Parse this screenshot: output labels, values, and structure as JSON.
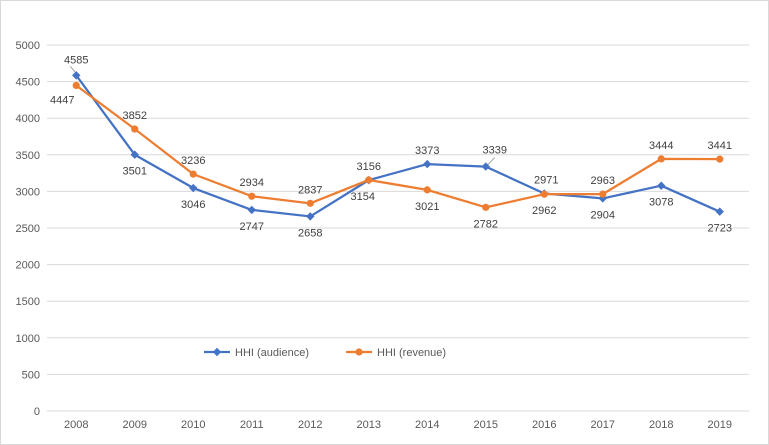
{
  "chart_data": {
    "type": "line",
    "title": "",
    "xlabel": "",
    "ylabel": "",
    "categories": [
      "2008",
      "2009",
      "2010",
      "2011",
      "2012",
      "2013",
      "2014",
      "2015",
      "2016",
      "2017",
      "2018",
      "2019"
    ],
    "series": [
      {
        "name": "HHI (audience)",
        "color": "#4472C4",
        "marker": "diamond",
        "values": [
          4585,
          3501,
          3046,
          2747,
          2658,
          3154,
          3373,
          3339,
          2971,
          2904,
          3078,
          2723
        ],
        "label_offsets": [
          [
            0,
            -12
          ],
          [
            0,
            20
          ],
          [
            0,
            20
          ],
          [
            0,
            20
          ],
          [
            0,
            20
          ],
          [
            -6,
            20
          ],
          [
            0,
            -10
          ],
          [
            9,
            -13
          ],
          [
            2,
            -10
          ],
          [
            0,
            20
          ],
          [
            0,
            20
          ],
          [
            0,
            20
          ]
        ]
      },
      {
        "name": "HHI (revenue)",
        "color": "#ED7D31",
        "marker": "circle",
        "values": [
          4447,
          3852,
          3236,
          2934,
          2837,
          3156,
          3021,
          2782,
          2962,
          2963,
          3444,
          3441
        ],
        "label_offsets": [
          [
            -14,
            18
          ],
          [
            0,
            -10
          ],
          [
            0,
            -10
          ],
          [
            0,
            -10
          ],
          [
            0,
            -10
          ],
          [
            0,
            -10
          ],
          [
            0,
            20
          ],
          [
            0,
            20
          ],
          [
            0,
            20
          ],
          [
            0,
            -10
          ],
          [
            0,
            -10
          ],
          [
            0,
            -10
          ]
        ]
      }
    ],
    "ylim": [
      0,
      5000
    ],
    "ytick_step": 500,
    "ytick_labels": [
      "0",
      "500",
      "1000",
      "1500",
      "2000",
      "2500",
      "3000",
      "3500",
      "4000",
      "4500",
      "5000"
    ],
    "grid": true,
    "legend_position": "bottom-center-inside",
    "leader_lines": [
      {
        "series": 0,
        "point": 0,
        "from": [
          -6,
          -9
        ],
        "to": [
          0,
          -2
        ]
      },
      {
        "series": 0,
        "point": 7,
        "from": [
          9,
          -9
        ],
        "to": [
          2,
          -2
        ]
      }
    ],
    "colors": {
      "grid": "#D9D9D9",
      "axis_text": "#595959",
      "data_label": "#404040",
      "leader": "#A6A6A6",
      "background": "#FFFFFF",
      "border": "#D9D9D9"
    }
  }
}
